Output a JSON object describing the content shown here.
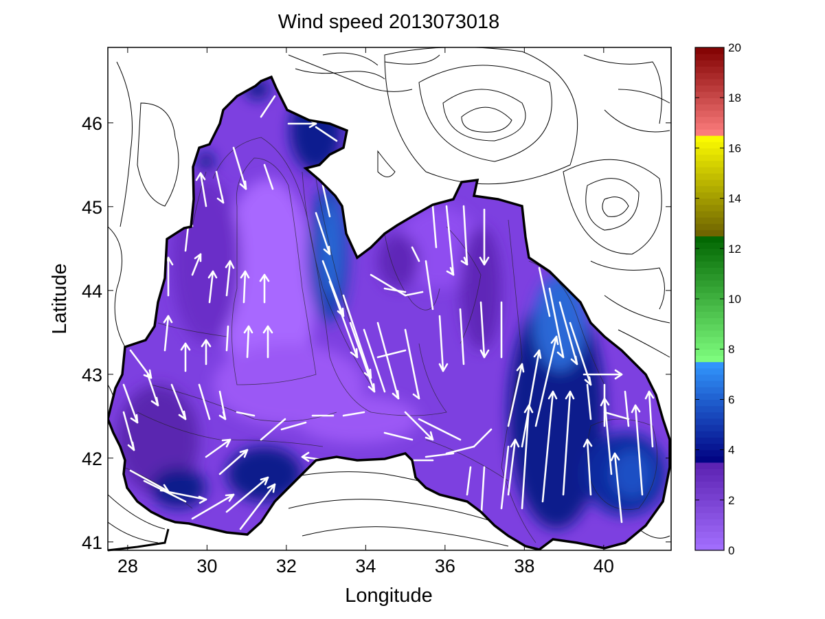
{
  "chart_data": {
    "type": "heatmap",
    "title": "Wind speed 2013073018",
    "xlabel": "Longitude",
    "ylabel": "Latitude",
    "xlim": [
      27.5,
      41.7
    ],
    "ylim": [
      40.9,
      46.9
    ],
    "xticks": [
      "28",
      "30",
      "32",
      "34",
      "36",
      "38",
      "40"
    ],
    "yticks": [
      "41",
      "42",
      "43",
      "44",
      "45",
      "46"
    ],
    "colorbar": {
      "range": [
        0,
        20
      ],
      "ticks": [
        "0",
        "2",
        "4",
        "6",
        "8",
        "10",
        "12",
        "14",
        "16",
        "18",
        "20"
      ],
      "segments": [
        {
          "from": 0,
          "to": 3.5,
          "color_low": "#a470ff",
          "color_high": "#5a20b0"
        },
        {
          "from": 3.5,
          "to": 7.5,
          "color_low": "#000080",
          "color_high": "#3399ff"
        },
        {
          "from": 7.5,
          "to": 12.5,
          "color_low": "#80ff80",
          "color_high": "#006400"
        },
        {
          "from": 12.5,
          "to": 16.5,
          "color_low": "#6b6000",
          "color_high": "#ffff00"
        },
        {
          "from": 16.5,
          "to": 20,
          "color_low": "#ff8080",
          "color_high": "#800000"
        }
      ]
    },
    "field_levels": [
      {
        "level": "0-1",
        "color": "#a566ff"
      },
      {
        "level": "1-2",
        "color": "#8a4ae8"
      },
      {
        "level": "2-3",
        "color": "#6f33cc"
      },
      {
        "level": "3-4",
        "color": "#4a1f9a"
      },
      {
        "level": "4-5",
        "color": "#0a1a8c"
      },
      {
        "level": "5-6",
        "color": "#1c4fc4"
      }
    ],
    "high_wind_regions": [
      {
        "name": "",
        "lon": 33.2,
        "lat": 44.6,
        "speed": 5
      },
      {
        "name": "",
        "lon": 38.9,
        "lat": 43.5,
        "speed": 6
      },
      {
        "name": "",
        "lon": 38.2,
        "lat": 42.2,
        "speed": 4.5
      },
      {
        "name": "",
        "lon": 40.6,
        "lat": 41.8,
        "speed": 5
      },
      {
        "name": "",
        "lon": 29.3,
        "lat": 41.7,
        "speed": 4
      },
      {
        "name": "",
        "lon": 32.1,
        "lat": 41.8,
        "speed": 4
      },
      {
        "name": "",
        "lon": 33.3,
        "lat": 45.9,
        "speed": 4.5
      }
    ],
    "wind_vectors_sample": [
      {
        "lon": 30.0,
        "lat": 45.2,
        "u": -0.3,
        "v": 1.6
      },
      {
        "lon": 31.5,
        "lat": 44.0,
        "u": 0.1,
        "v": 1.8
      },
      {
        "lon": 33.5,
        "lat": 43.5,
        "u": 0.8,
        "v": -2.0
      },
      {
        "lon": 35.0,
        "lat": 43.2,
        "u": 0.5,
        "v": -2.0
      },
      {
        "lon": 36.5,
        "lat": 44.5,
        "u": 0.1,
        "v": -2.2
      },
      {
        "lon": 38.5,
        "lat": 42.3,
        "u": 0.3,
        "v": 2.8
      },
      {
        "lon": 39.0,
        "lat": 42.0,
        "u": 0.0,
        "v": 3.0
      },
      {
        "lon": 40.5,
        "lat": 42.2,
        "u": 0.1,
        "v": 3.0
      },
      {
        "lon": 33.0,
        "lat": 42.2,
        "u": -1.2,
        "v": -0.7
      },
      {
        "lon": 29.5,
        "lat": 41.8,
        "u": 1.0,
        "v": -0.5
      }
    ]
  }
}
